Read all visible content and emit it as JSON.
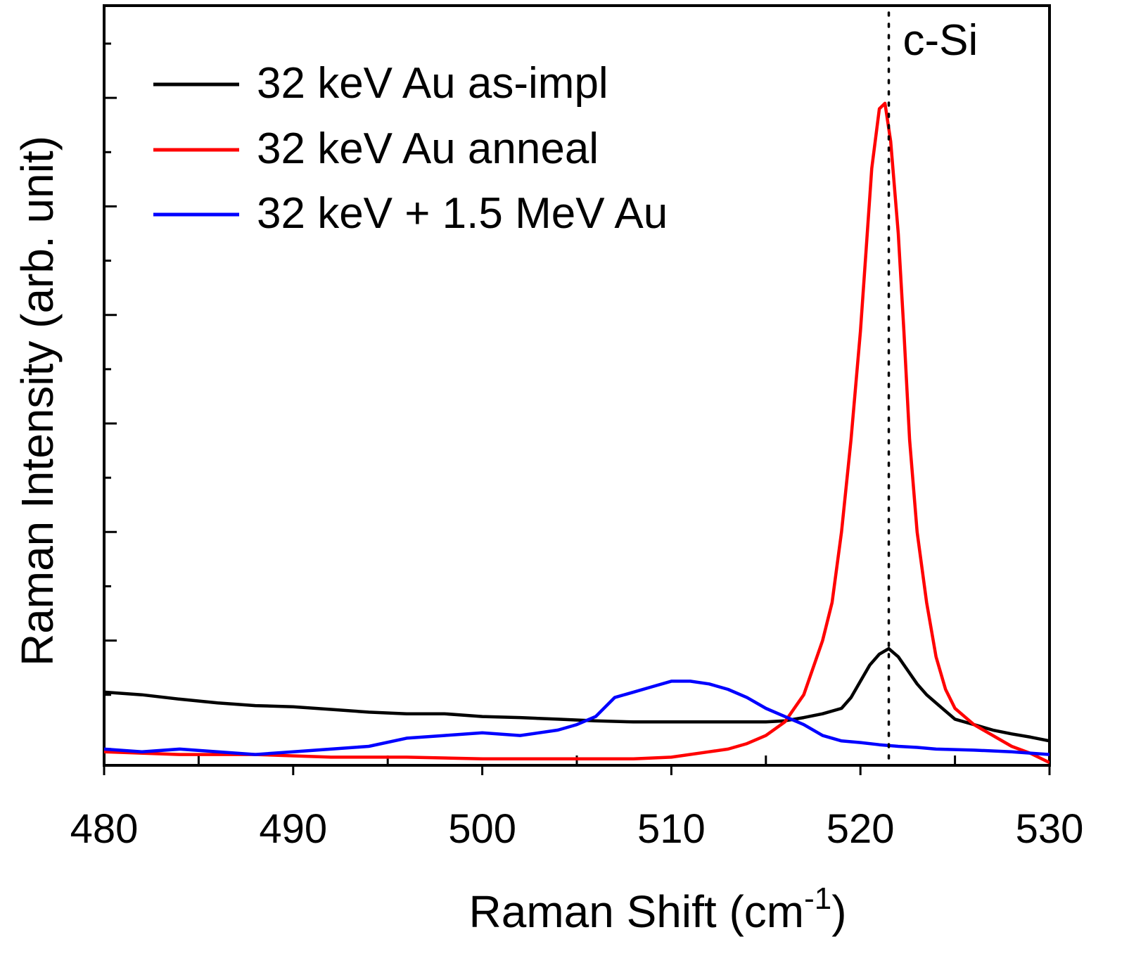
{
  "chart_data": {
    "type": "line",
    "xlabel": "Raman Shift (cm",
    "xlabel_sup": "-1",
    "xlabel_close": ")",
    "ylabel": "Raman Intensity (arb. unit)",
    "xlim": [
      480,
      530
    ],
    "ylim": [
      0,
      14
    ],
    "x_ticks": [
      480,
      490,
      500,
      510,
      520,
      530
    ],
    "x_tick_labels": [
      "480",
      "490",
      "500",
      "510",
      "520",
      "530"
    ],
    "y_ticks_major": [
      2.3,
      4.3,
      6.3,
      8.3,
      10.3,
      12.3
    ],
    "y_tick_labels_shown": false,
    "grid": false,
    "legend_position": "top-left",
    "annotation": {
      "text": "c-Si",
      "x": 521.5
    },
    "series": [
      {
        "name": "32 keV Au as-impl",
        "color": "#000000",
        "x": [
          480,
          482,
          484,
          486,
          488,
          490,
          492,
          494,
          496,
          498,
          500,
          502,
          504,
          506,
          508,
          510,
          512,
          514,
          515,
          516,
          517,
          518,
          519,
          519.5,
          520,
          520.5,
          521,
          521.5,
          522,
          522.5,
          523,
          523.5,
          524,
          524.5,
          525,
          526,
          527,
          528,
          529,
          530
        ],
        "y": [
          1.35,
          1.3,
          1.22,
          1.15,
          1.1,
          1.08,
          1.03,
          0.98,
          0.95,
          0.95,
          0.9,
          0.88,
          0.85,
          0.82,
          0.8,
          0.8,
          0.8,
          0.8,
          0.8,
          0.82,
          0.88,
          0.95,
          1.05,
          1.25,
          1.55,
          1.85,
          2.05,
          2.15,
          2.0,
          1.75,
          1.5,
          1.3,
          1.15,
          1.0,
          0.85,
          0.75,
          0.65,
          0.58,
          0.52,
          0.45
        ]
      },
      {
        "name": "32 keV Au anneal",
        "color": "#ff0000",
        "x": [
          480,
          484,
          488,
          492,
          496,
          500,
          504,
          506,
          508,
          510,
          512,
          513,
          514,
          515,
          516,
          517,
          518,
          518.5,
          519,
          519.5,
          520,
          520.3,
          520.6,
          521,
          521.3,
          521.6,
          522,
          522.3,
          522.6,
          523,
          523.5,
          524,
          524.5,
          525,
          526,
          527,
          528,
          529,
          530
        ],
        "y": [
          0.25,
          0.2,
          0.2,
          0.15,
          0.15,
          0.12,
          0.12,
          0.12,
          0.12,
          0.15,
          0.25,
          0.3,
          0.4,
          0.55,
          0.8,
          1.3,
          2.3,
          3.0,
          4.3,
          6.0,
          8.0,
          9.5,
          11.0,
          12.1,
          12.2,
          11.5,
          9.8,
          8.0,
          6.0,
          4.3,
          3.0,
          2.0,
          1.4,
          1.05,
          0.75,
          0.55,
          0.35,
          0.22,
          0.05
        ]
      },
      {
        "name": "32 keV + 1.5 MeV Au",
        "color": "#0000ff",
        "x": [
          480,
          482,
          484,
          486,
          488,
          490,
          492,
          494,
          496,
          498,
          500,
          502,
          504,
          505,
          506,
          507,
          508,
          509,
          510,
          511,
          512,
          513,
          514,
          515,
          516,
          517,
          518,
          519,
          520,
          521,
          522,
          523,
          524,
          526,
          528,
          530
        ],
        "y": [
          0.3,
          0.25,
          0.3,
          0.25,
          0.2,
          0.25,
          0.3,
          0.35,
          0.5,
          0.55,
          0.6,
          0.55,
          0.65,
          0.75,
          0.9,
          1.25,
          1.35,
          1.45,
          1.55,
          1.55,
          1.5,
          1.4,
          1.25,
          1.05,
          0.9,
          0.75,
          0.55,
          0.45,
          0.42,
          0.38,
          0.35,
          0.33,
          0.3,
          0.28,
          0.25,
          0.2
        ]
      }
    ]
  }
}
